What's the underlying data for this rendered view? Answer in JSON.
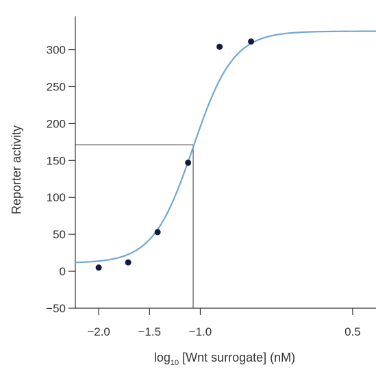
{
  "chart_data": {
    "type": "scatter",
    "title": "",
    "xlabel": {
      "prefix": "log",
      "subscript": "10",
      "suffix": " [Wnt surrogate] (nM)"
    },
    "ylabel": "Reporter activity",
    "xlim": [
      -2.23,
      0.73
    ],
    "ylim": [
      -50,
      345
    ],
    "x_ticks": [
      {
        "value": -2.0,
        "label": "−2.0"
      },
      {
        "value": -1.5,
        "label": "−1.5"
      },
      {
        "value": -1.0,
        "label": "−1.0"
      },
      {
        "value": 0.5,
        "label": "0.5"
      }
    ],
    "y_ticks": [
      {
        "value": -50,
        "label": "−50"
      },
      {
        "value": 0,
        "label": "0"
      },
      {
        "value": 50,
        "label": "50"
      },
      {
        "value": 100,
        "label": "100"
      },
      {
        "value": 150,
        "label": "150"
      },
      {
        "value": 200,
        "label": "200"
      },
      {
        "value": 250,
        "label": "250"
      },
      {
        "value": 300,
        "label": "300"
      }
    ],
    "points": [
      {
        "x": -2.0,
        "y": 5
      },
      {
        "x": -1.71,
        "y": 12
      },
      {
        "x": -1.42,
        "y": 53
      },
      {
        "x": -1.12,
        "y": 147
      },
      {
        "x": -0.81,
        "y": 304
      },
      {
        "x": -0.5,
        "y": 311
      }
    ],
    "fit": {
      "model": "4-parameter logistic",
      "bottom": 11,
      "top": 325,
      "log_ec50": -1.07,
      "hill_slope": 2.2,
      "color": "#6fa8d0"
    },
    "ec50_marker": {
      "x": -1.07,
      "y": 171
    },
    "point_color": "#141a3c",
    "axis_color": "#333333",
    "grid": false,
    "legend": "none"
  }
}
